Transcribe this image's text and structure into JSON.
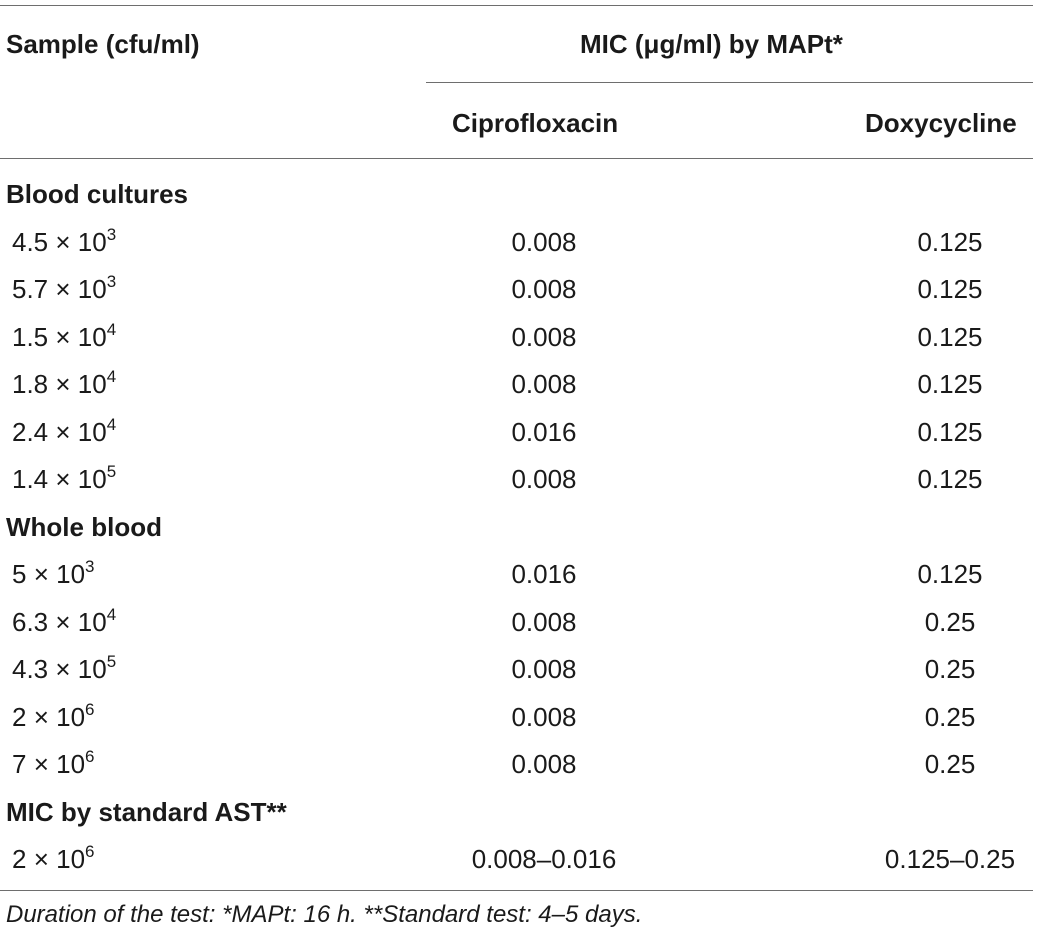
{
  "table": {
    "header": {
      "sample_col": "Sample (cfu/ml)",
      "group_label": "MIC (μg/ml) by MAPt*",
      "col2": "Ciprofloxacin",
      "col3": "Doxycycline"
    },
    "sections": [
      {
        "title": "Blood cultures",
        "rows": [
          {
            "mantissa": "4.5",
            "exp": "3",
            "cipro": "0.008",
            "doxy": "0.125"
          },
          {
            "mantissa": "5.7",
            "exp": "3",
            "cipro": "0.008",
            "doxy": "0.125"
          },
          {
            "mantissa": "1.5",
            "exp": "4",
            "cipro": "0.008",
            "doxy": "0.125"
          },
          {
            "mantissa": "1.8",
            "exp": "4",
            "cipro": "0.008",
            "doxy": "0.125"
          },
          {
            "mantissa": "2.4",
            "exp": "4",
            "cipro": "0.016",
            "doxy": "0.125"
          },
          {
            "mantissa": "1.4",
            "exp": "5",
            "cipro": "0.008",
            "doxy": "0.125"
          }
        ]
      },
      {
        "title": "Whole blood",
        "rows": [
          {
            "mantissa": "5",
            "exp": "3",
            "cipro": "0.016",
            "doxy": "0.125"
          },
          {
            "mantissa": "6.3",
            "exp": "4",
            "cipro": "0.008",
            "doxy": "0.25"
          },
          {
            "mantissa": "4.3",
            "exp": "5",
            "cipro": "0.008",
            "doxy": "0.25"
          },
          {
            "mantissa": "2",
            "exp": "6",
            "cipro": "0.008",
            "doxy": "0.25"
          },
          {
            "mantissa": "7",
            "exp": "6",
            "cipro": "0.008",
            "doxy": "0.25"
          }
        ]
      },
      {
        "title": "MIC by standard AST**",
        "rows": [
          {
            "mantissa": "2",
            "exp": "6",
            "cipro": "0.008–0.016",
            "doxy": "0.125–0.25"
          }
        ]
      }
    ],
    "times_symbol": "×",
    "base": "10",
    "footnote": "Duration of the test: *MAPt: 16 h. **Standard test: 4–5 days."
  }
}
